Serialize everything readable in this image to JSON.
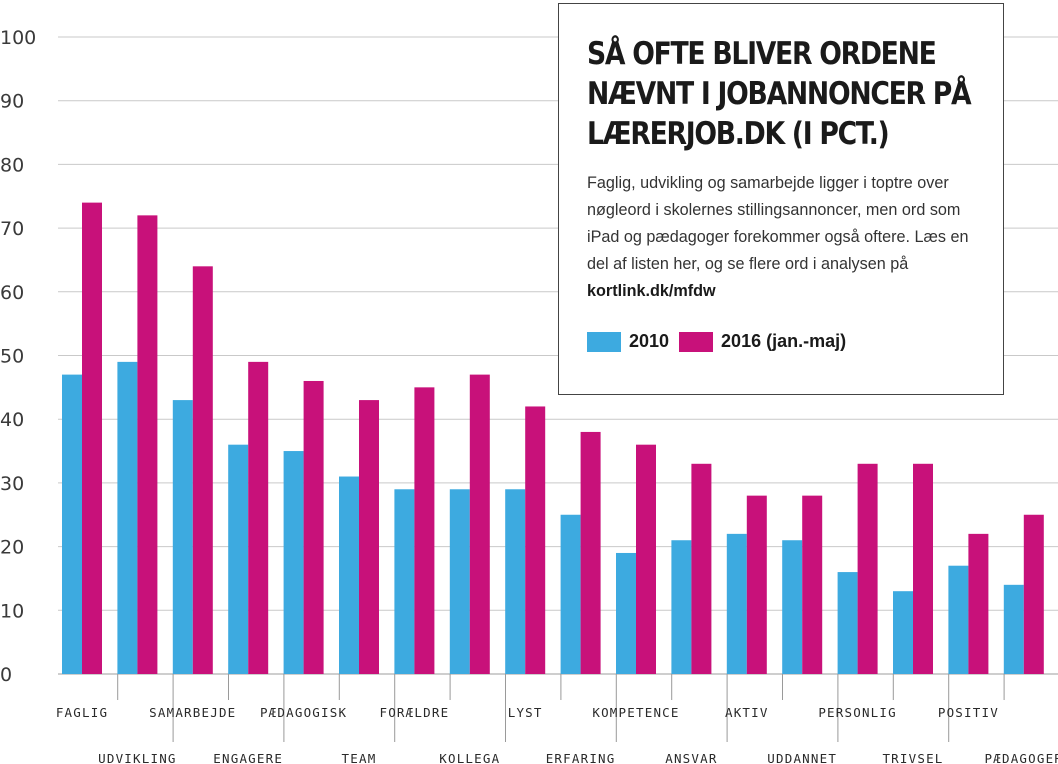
{
  "chart_data": {
    "type": "bar",
    "title": "SÅ OFTE BLIVER ORDENE NÆVNT I JOBANNONCER PÅ LÆRERJOB.DK (I PCT.)",
    "subtitle_parts": [
      "Faglig, udvikling og samarbejde ligger i toptre over nøgleord i skolernes stillingsannoncer, men ord som iPad og pædagoger forekommer også oftere. Læs en del af listen her, og se flere ord i analysen på ",
      "kortlink.dk/mfdw"
    ],
    "categories": [
      "FAGLIG",
      "UDVIKLING",
      "SAMARBEJDE",
      "ENGAGERE",
      "PÆDAGOGISK",
      "TEAM",
      "FORÆLDRE",
      "KOLLEGA",
      "LYST",
      "ERFARING",
      "KOMPETENCE",
      "ANSVAR",
      "AKTIV",
      "UDDANNET",
      "PERSONLIG",
      "TRIVSEL",
      "POSITIV",
      "PÆDAGOGER"
    ],
    "series": [
      {
        "name": "2010",
        "color": "#3daae0",
        "values": [
          47,
          49,
          43,
          36,
          35,
          31,
          29,
          29,
          29,
          25,
          19,
          21,
          22,
          21,
          16,
          13,
          17,
          14
        ]
      },
      {
        "name": "2016 (jan.-maj)",
        "color": "#c8117a",
        "values": [
          74,
          72,
          64,
          49,
          46,
          43,
          45,
          47,
          42,
          38,
          36,
          33,
          28,
          28,
          33,
          33,
          22,
          25
        ]
      }
    ],
    "ylim": [
      0,
      100
    ],
    "yticks": [
      0,
      10,
      20,
      30,
      40,
      50,
      60,
      70,
      80,
      90,
      100
    ],
    "grid": true,
    "legend": "inside info box, top-right"
  }
}
